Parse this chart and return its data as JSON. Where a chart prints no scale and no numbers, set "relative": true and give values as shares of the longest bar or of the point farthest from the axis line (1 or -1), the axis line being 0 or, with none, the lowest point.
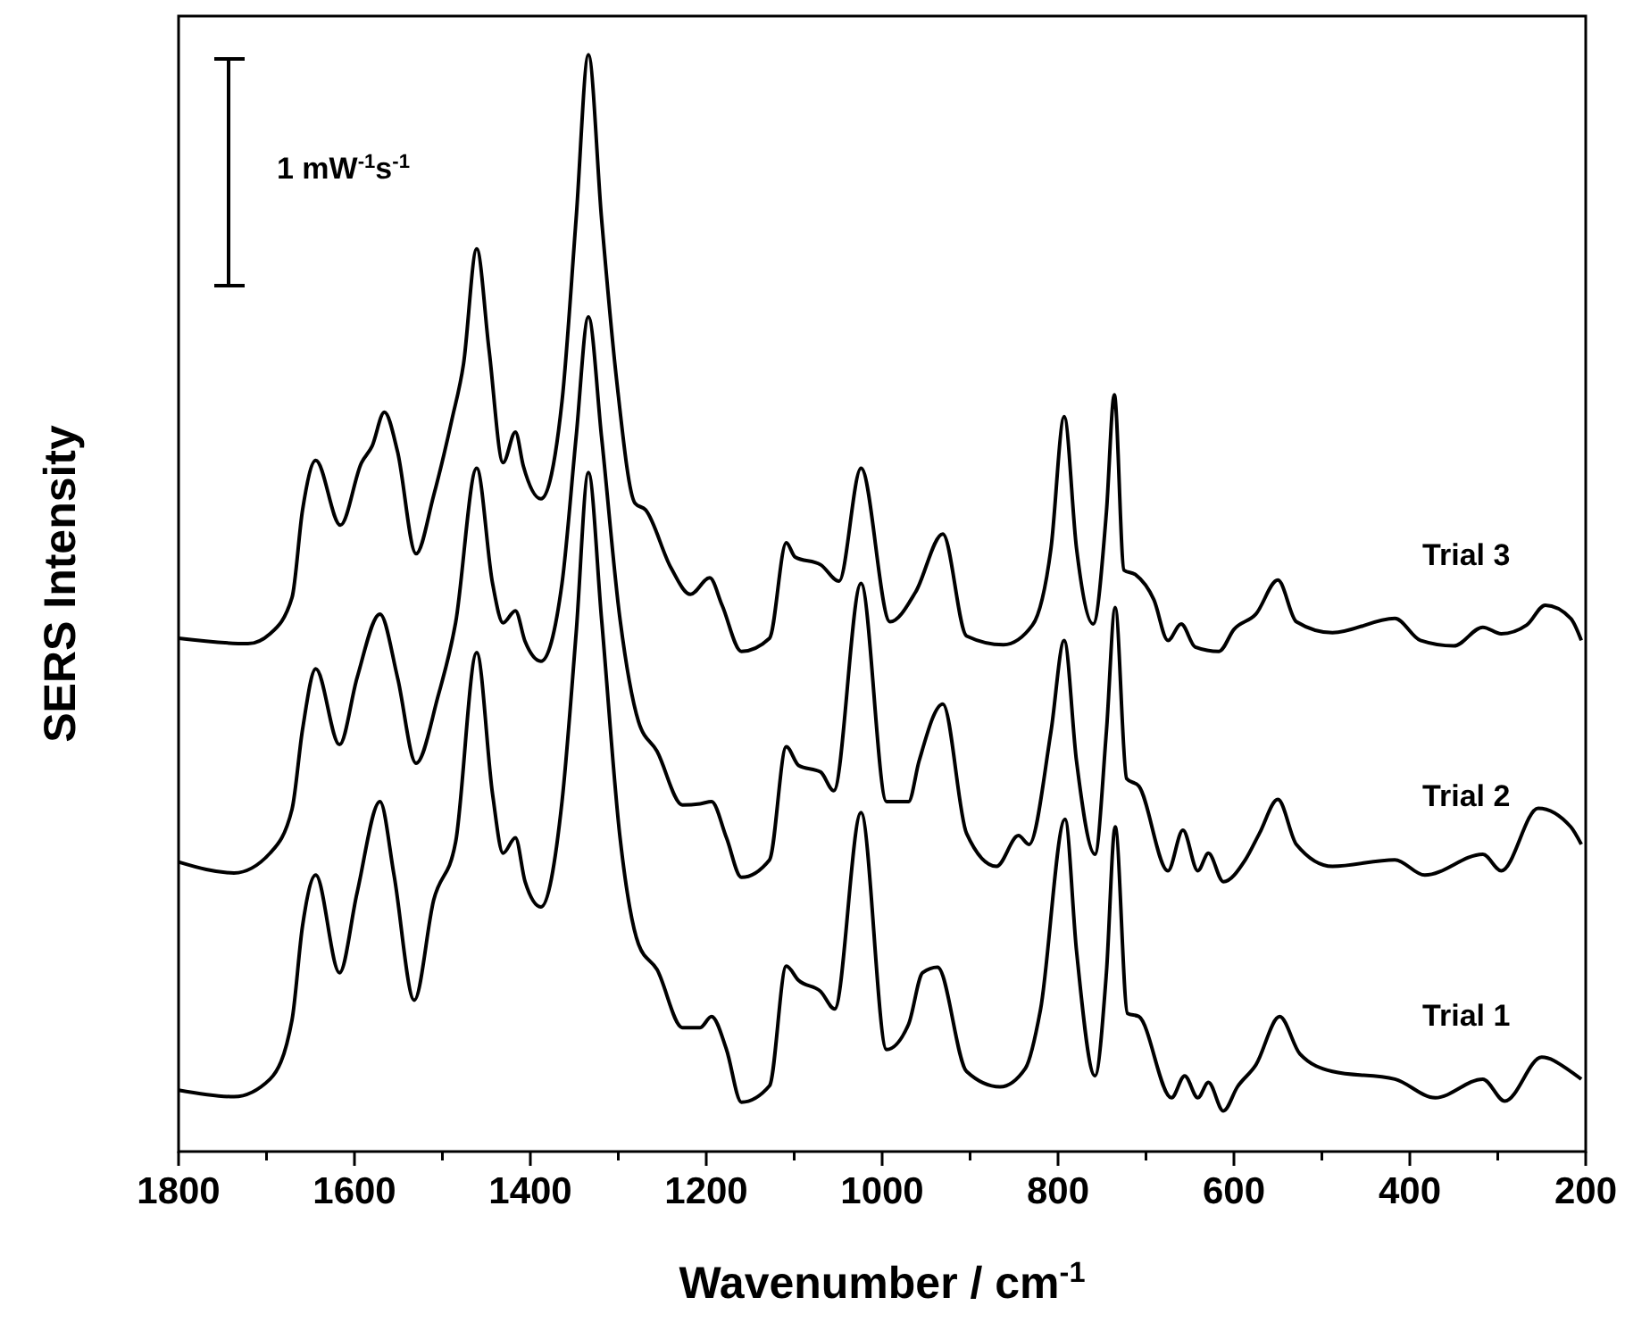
{
  "chart_data": {
    "type": "line",
    "relative": true,
    "xlabel": "Wavenumber / cm$^{-1}$",
    "ylabel": "SERS Intensity",
    "annotations": [
      "1 mW$^{-1}$s$^{-1}$"
    ],
    "xlim": [
      1800,
      200
    ],
    "xticks": [
      1800,
      {
        "value": 1700,
        "label": null
      },
      1600,
      {
        "value": 1500,
        "label": null
      },
      1400,
      {
        "value": 1300,
        "label": null
      },
      1200,
      {
        "value": 1100,
        "label": null
      },
      1000,
      {
        "value": 900,
        "label": null
      },
      800,
      {
        "value": 700,
        "label": null
      },
      600,
      {
        "value": 500,
        "label": null
      },
      400,
      {
        "value": 300,
        "label": null
      },
      200
    ],
    "tick_labels": "x",
    "grid": false,
    "marker": "none",
    "line_style": "solid",
    "series": [
      {
        "name": "Trial 1",
        "color": "#000000",
        "x": [
          1800,
          1737,
          1696,
          1671,
          1659,
          1644,
          1617,
          1597,
          1571,
          1555,
          1532,
          1510,
          1485,
          1461,
          1443,
          1431,
          1417,
          1406,
          1388,
          1364,
          1348,
          1334,
          1319,
          1298,
          1277,
          1256,
          1227,
          1207,
          1194,
          1177,
          1160,
          1128,
          1109,
          1095,
          1070,
          1054,
          1024,
          995,
          970,
          954,
          937,
          904,
          866,
          837,
          820,
          792,
          779,
          758,
          745,
          735,
          721,
          708,
          671,
          656,
          641,
          629,
          612,
          596,
          575,
          548,
          525,
          488,
          417,
          371,
          317,
          292,
          250,
          217,
          205
        ],
        "values": [
          0.056,
          0.05,
          0.066,
          0.12,
          0.206,
          0.252,
          0.163,
          0.236,
          0.319,
          0.252,
          0.138,
          0.229,
          0.282,
          0.455,
          0.326,
          0.272,
          0.286,
          0.246,
          0.223,
          0.319,
          0.472,
          0.619,
          0.485,
          0.286,
          0.189,
          0.166,
          0.113,
          0.113,
          0.123,
          0.093,
          0.045,
          0.06,
          0.169,
          0.156,
          0.146,
          0.13,
          0.309,
          0.093,
          0.116,
          0.163,
          0.168,
          0.073,
          0.059,
          0.076,
          0.129,
          0.303,
          0.183,
          0.069,
          0.163,
          0.296,
          0.126,
          0.123,
          0.049,
          0.069,
          0.049,
          0.063,
          0.037,
          0.059,
          0.079,
          0.123,
          0.089,
          0.073,
          0.066,
          0.049,
          0.066,
          0.046,
          0.086,
          0.073,
          0.066
        ]
      },
      {
        "name": "Trial 2",
        "color": "#000000",
        "x": [
          1800,
          1737,
          1696,
          1671,
          1659,
          1644,
          1617,
          1597,
          1571,
          1551,
          1530,
          1505,
          1485,
          1461,
          1443,
          1431,
          1417,
          1406,
          1388,
          1364,
          1348,
          1334,
          1319,
          1298,
          1277,
          1256,
          1227,
          1207,
          1194,
          1177,
          1160,
          1128,
          1109,
          1095,
          1070,
          1055,
          1024,
          995,
          970,
          958,
          931,
          904,
          870,
          845,
          833,
          808,
          793,
          779,
          758,
          745,
          735,
          722,
          708,
          675,
          658,
          641,
          629,
          612,
          587,
          571,
          550,
          529,
          488,
          417,
          383,
          317,
          296,
          254,
          217,
          205
        ],
        "values": [
          0.264,
          0.254,
          0.272,
          0.312,
          0.385,
          0.44,
          0.371,
          0.432,
          0.49,
          0.432,
          0.354,
          0.415,
          0.482,
          0.623,
          0.518,
          0.482,
          0.493,
          0.465,
          0.447,
          0.518,
          0.651,
          0.761,
          0.651,
          0.485,
          0.392,
          0.365,
          0.316,
          0.317,
          0.319,
          0.286,
          0.25,
          0.266,
          0.369,
          0.352,
          0.346,
          0.329,
          0.518,
          0.319,
          0.319,
          0.356,
          0.408,
          0.29,
          0.26,
          0.288,
          0.28,
          0.383,
          0.466,
          0.356,
          0.271,
          0.383,
          0.496,
          0.34,
          0.333,
          0.256,
          0.293,
          0.256,
          0.272,
          0.246,
          0.266,
          0.29,
          0.321,
          0.28,
          0.26,
          0.266,
          0.252,
          0.271,
          0.256,
          0.313,
          0.296,
          0.28
        ]
      },
      {
        "name": "Trial 3",
        "color": "#000000",
        "x": [
          1800,
          1721,
          1696,
          1671,
          1659,
          1644,
          1616,
          1592,
          1580,
          1566,
          1551,
          1530,
          1510,
          1489,
          1476,
          1461,
          1447,
          1431,
          1417,
          1408,
          1388,
          1364,
          1348,
          1334,
          1319,
          1302,
          1281,
          1269,
          1240,
          1218,
          1196,
          1182,
          1160,
          1128,
          1109,
          1099,
          1070,
          1049,
          1024,
          991,
          962,
          931,
          904,
          862,
          829,
          808,
          793,
          779,
          760,
          745,
          736,
          725,
          712,
          691,
          675,
          660,
          644,
          617,
          600,
          575,
          550,
          529,
          488,
          417,
          388,
          350,
          317,
          296,
          267,
          246,
          217,
          205
        ],
        "values": [
          0.468,
          0.463,
          0.472,
          0.505,
          0.585,
          0.63,
          0.571,
          0.628,
          0.643,
          0.674,
          0.638,
          0.545,
          0.598,
          0.668,
          0.718,
          0.823,
          0.731,
          0.628,
          0.656,
          0.625,
          0.595,
          0.684,
          0.85,
          1,
          0.85,
          0.704,
          0.591,
          0.585,
          0.532,
          0.508,
          0.523,
          0.498,
          0.456,
          0.468,
          0.555,
          0.542,
          0.535,
          0.52,
          0.623,
          0.483,
          0.51,
          0.563,
          0.47,
          0.462,
          0.48,
          0.55,
          0.67,
          0.55,
          0.481,
          0.583,
          0.69,
          0.53,
          0.526,
          0.503,
          0.466,
          0.481,
          0.46,
          0.456,
          0.476,
          0.49,
          0.521,
          0.483,
          0.473,
          0.486,
          0.466,
          0.461,
          0.478,
          0.472,
          0.48,
          0.498,
          0.486,
          0.466
        ]
      }
    ]
  }
}
